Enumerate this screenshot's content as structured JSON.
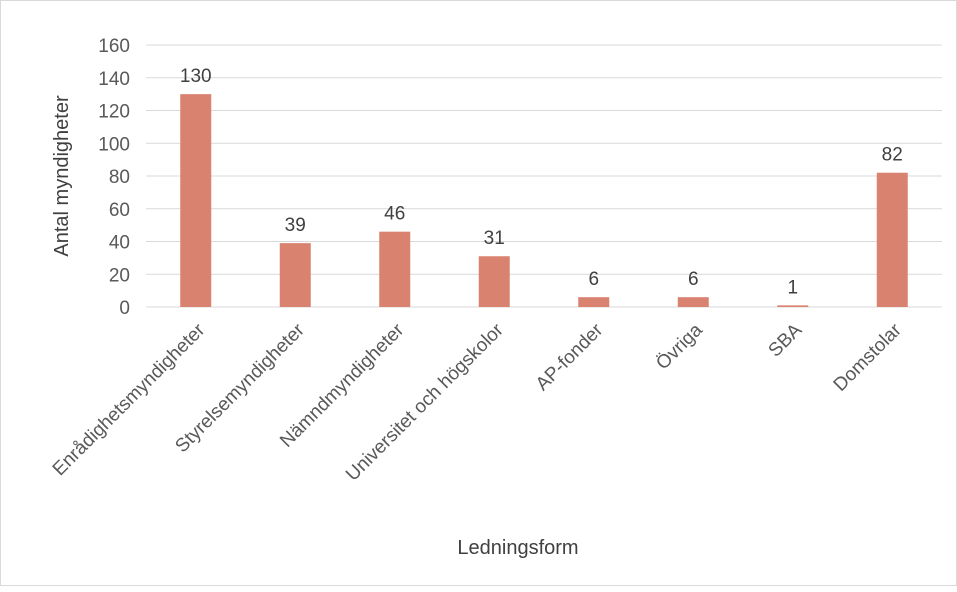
{
  "chart_data": {
    "type": "bar",
    "title": "",
    "xlabel": "Ledningsform",
    "ylabel": "Antal myndigheter",
    "categories": [
      "Enrådighetsmyndigheter",
      "Styrelsemyndigheter",
      "Nämndmyndigheter",
      "Universitet och högskolor",
      "AP-fonder",
      "Övriga",
      "SBA",
      "Domstolar"
    ],
    "values": [
      130,
      39,
      46,
      31,
      6,
      6,
      1,
      82
    ],
    "ylim": [
      0,
      160
    ],
    "yticks": [
      0,
      20,
      40,
      60,
      80,
      100,
      120,
      140,
      160
    ],
    "grid": true,
    "legend": "none",
    "bar_color": "#d9826f",
    "grid_color": "#d9d9d9"
  }
}
